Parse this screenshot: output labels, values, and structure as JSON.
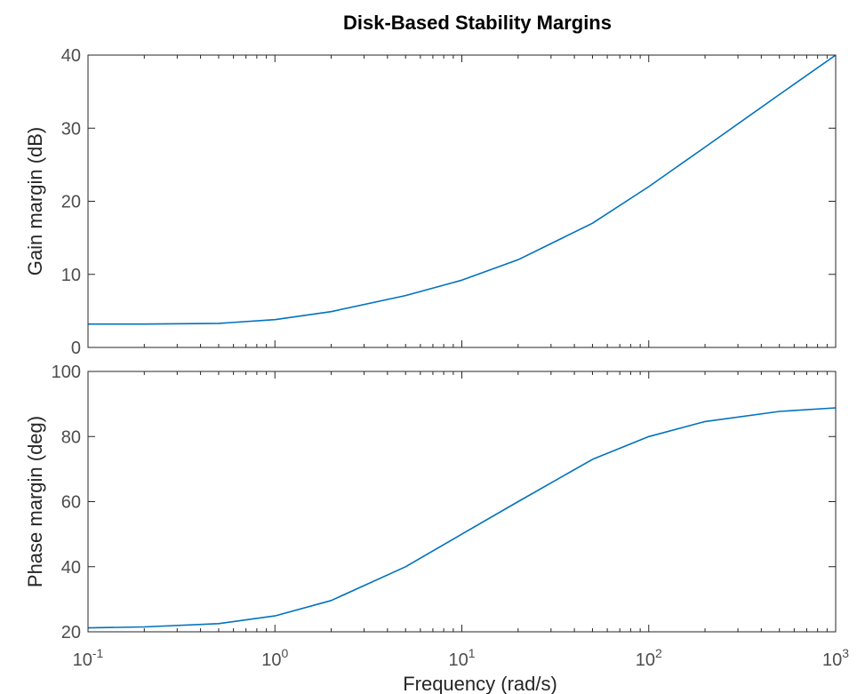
{
  "chart_data": {
    "type": "line",
    "title": "Disk-Based Stability Margins",
    "x_scale": "log",
    "xlabel": "Frequency (rad/s)",
    "xlim": [
      0.1,
      1000
    ],
    "x_ticks": [
      {
        "base": "10",
        "exp": "-1"
      },
      {
        "base": "10",
        "exp": "0"
      },
      {
        "base": "10",
        "exp": "1"
      },
      {
        "base": "10",
        "exp": "2"
      },
      {
        "base": "10",
        "exp": "3"
      }
    ],
    "grid": false,
    "line_color": "#0072BD",
    "subplots": [
      {
        "ylabel": "Gain margin (dB)",
        "ylim": [
          0,
          40
        ],
        "y_ticks": [
          "0",
          "10",
          "20",
          "30",
          "40"
        ],
        "series": [
          {
            "x": [
              0.1,
              0.2,
              0.5,
              1,
              2,
              5,
              10,
              20,
              50,
              100,
              200,
              500,
              1000
            ],
            "y": [
              3.2,
              3.2,
              3.3,
              3.8,
              4.9,
              7.1,
              9.2,
              12.0,
              17.0,
              22.0,
              27.4,
              34.6,
              40.0
            ]
          }
        ]
      },
      {
        "ylabel": "Phase margin (deg)",
        "ylim": [
          20,
          100
        ],
        "y_ticks": [
          "20",
          "40",
          "60",
          "80",
          "100"
        ],
        "series": [
          {
            "x": [
              0.1,
              0.2,
              0.5,
              1,
              2,
              5,
              10,
              20,
              50,
              100,
              200,
              500,
              1000
            ],
            "y": [
              21.2,
              21.5,
              22.5,
              24.9,
              29.6,
              40.0,
              50.0,
              60.0,
              73.0,
              80.0,
              84.6,
              87.7,
              88.8
            ]
          }
        ]
      }
    ]
  }
}
